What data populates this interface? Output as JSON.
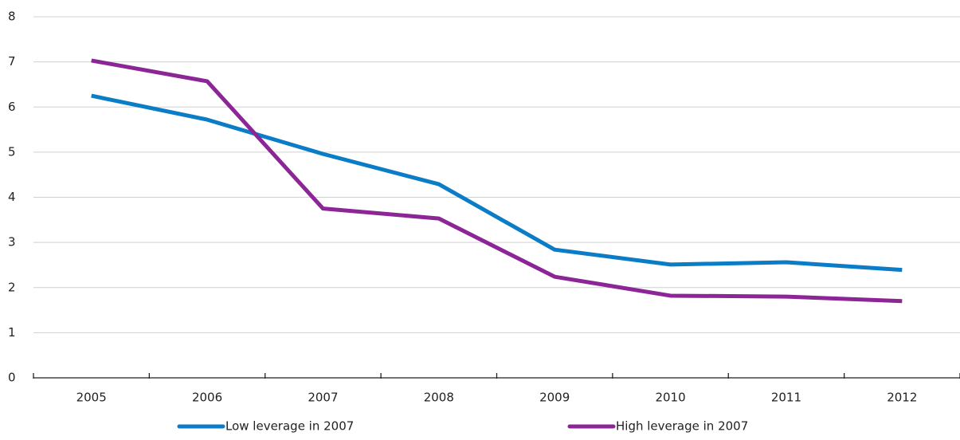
{
  "chart_data": {
    "type": "line",
    "categories": [
      "2005",
      "2006",
      "2007",
      "2008",
      "2009",
      "2010",
      "2011",
      "2012"
    ],
    "series": [
      {
        "name": "Low leverage in 2007",
        "color": "#0b7cc6",
        "values": [
          6.25,
          5.72,
          4.96,
          4.29,
          2.84,
          2.51,
          2.56,
          2.39
        ]
      },
      {
        "name": "High leverage in 2007",
        "color": "#8c2596",
        "values": [
          7.03,
          6.57,
          3.75,
          3.53,
          2.24,
          1.82,
          1.8,
          1.7
        ]
      }
    ],
    "ylim": [
      0,
      8
    ],
    "yticks": [
      0,
      1,
      2,
      3,
      4,
      5,
      6,
      7,
      8
    ],
    "grid": true,
    "legend": "bottom"
  }
}
